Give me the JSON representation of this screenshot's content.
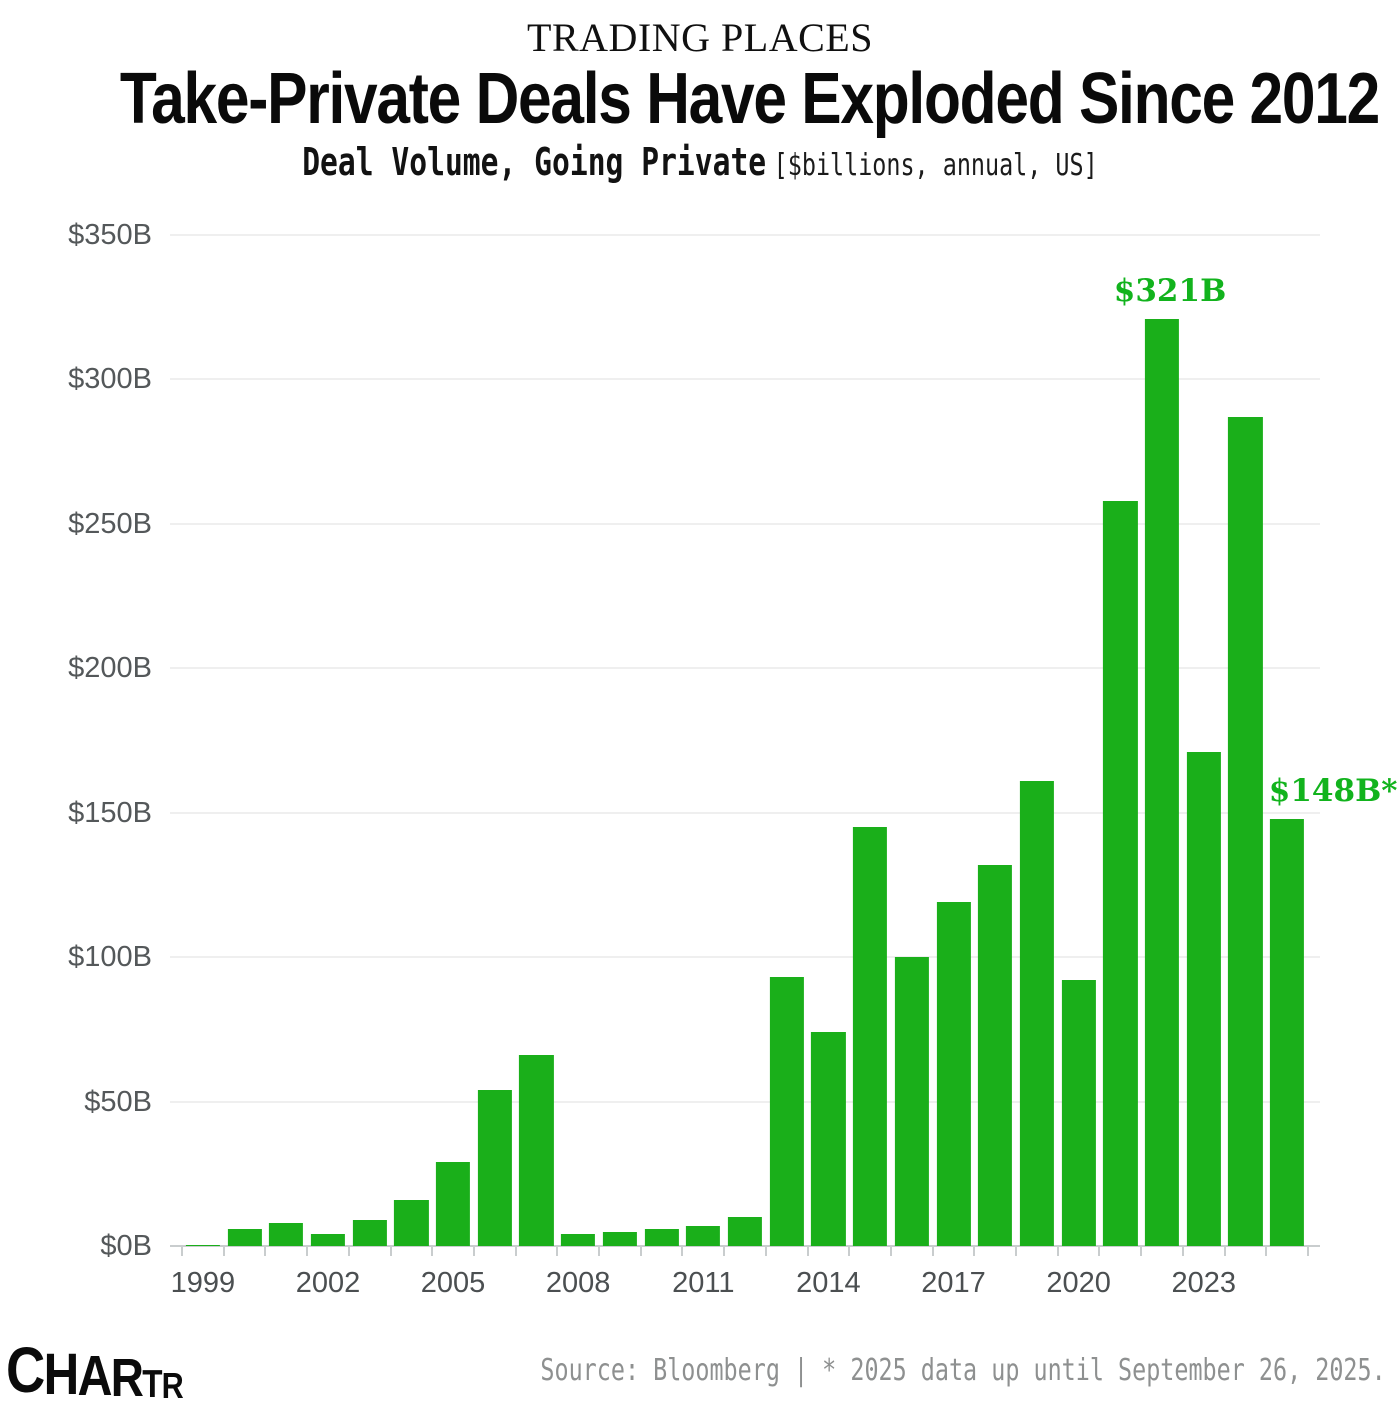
{
  "header": {
    "kicker": "TRADING PLACES",
    "headline": "Take-Private Deals Have Exploded Since 2012",
    "subtitle_bold": "Deal Volume, Going Private",
    "subtitle_note": "[$billions, annual, US]"
  },
  "chart_data": {
    "type": "bar",
    "title": "Take-Private Deals Have Exploded Since 2012",
    "subtitle": "Deal Volume, Going Private [$billions, annual, US]",
    "unit": "$billions",
    "categories": [
      1999,
      2000,
      2001,
      2002,
      2003,
      2004,
      2005,
      2006,
      2007,
      2008,
      2009,
      2010,
      2011,
      2012,
      2013,
      2014,
      2015,
      2016,
      2017,
      2018,
      2019,
      2020,
      2021,
      2022,
      2023,
      2024,
      2025
    ],
    "values": [
      0.5,
      6,
      8,
      4,
      9,
      16,
      29,
      54,
      66,
      4,
      5,
      6,
      7,
      10,
      93,
      74,
      145,
      100,
      119,
      132,
      161,
      92,
      258,
      321,
      171,
      287,
      148
    ],
    "ylim": [
      0,
      350
    ],
    "ytick_labels": [
      "$0B",
      "$50B",
      "$100B",
      "$150B",
      "$200B",
      "$250B",
      "$300B",
      "$350B"
    ],
    "xtick_labels": [
      "1999",
      "2002",
      "2005",
      "2008",
      "2011",
      "2014",
      "2017",
      "2020",
      "2023"
    ],
    "grid": "horizontal",
    "legend": "none",
    "bar_color": "#1aaf1a",
    "annotations": [
      {
        "year": 2022,
        "label": "$321B"
      },
      {
        "year": 2025,
        "label": "$148B*"
      }
    ]
  },
  "footer": {
    "logo": "CHARTR",
    "logo_letters": [
      "C",
      "H",
      "A",
      "R",
      "T",
      "R"
    ],
    "source": "Source: Bloomberg | * 2025 data up until September 26, 2025."
  },
  "colors": {
    "bar": "#1aaf1a",
    "annotation": "#12b31d",
    "gridline": "#efefef",
    "axis": "#c9cdce",
    "y_label": "#54585a",
    "x_label": "#4b4f51",
    "source_text": "#8e9090",
    "headline_text": "#0a0a0a"
  }
}
